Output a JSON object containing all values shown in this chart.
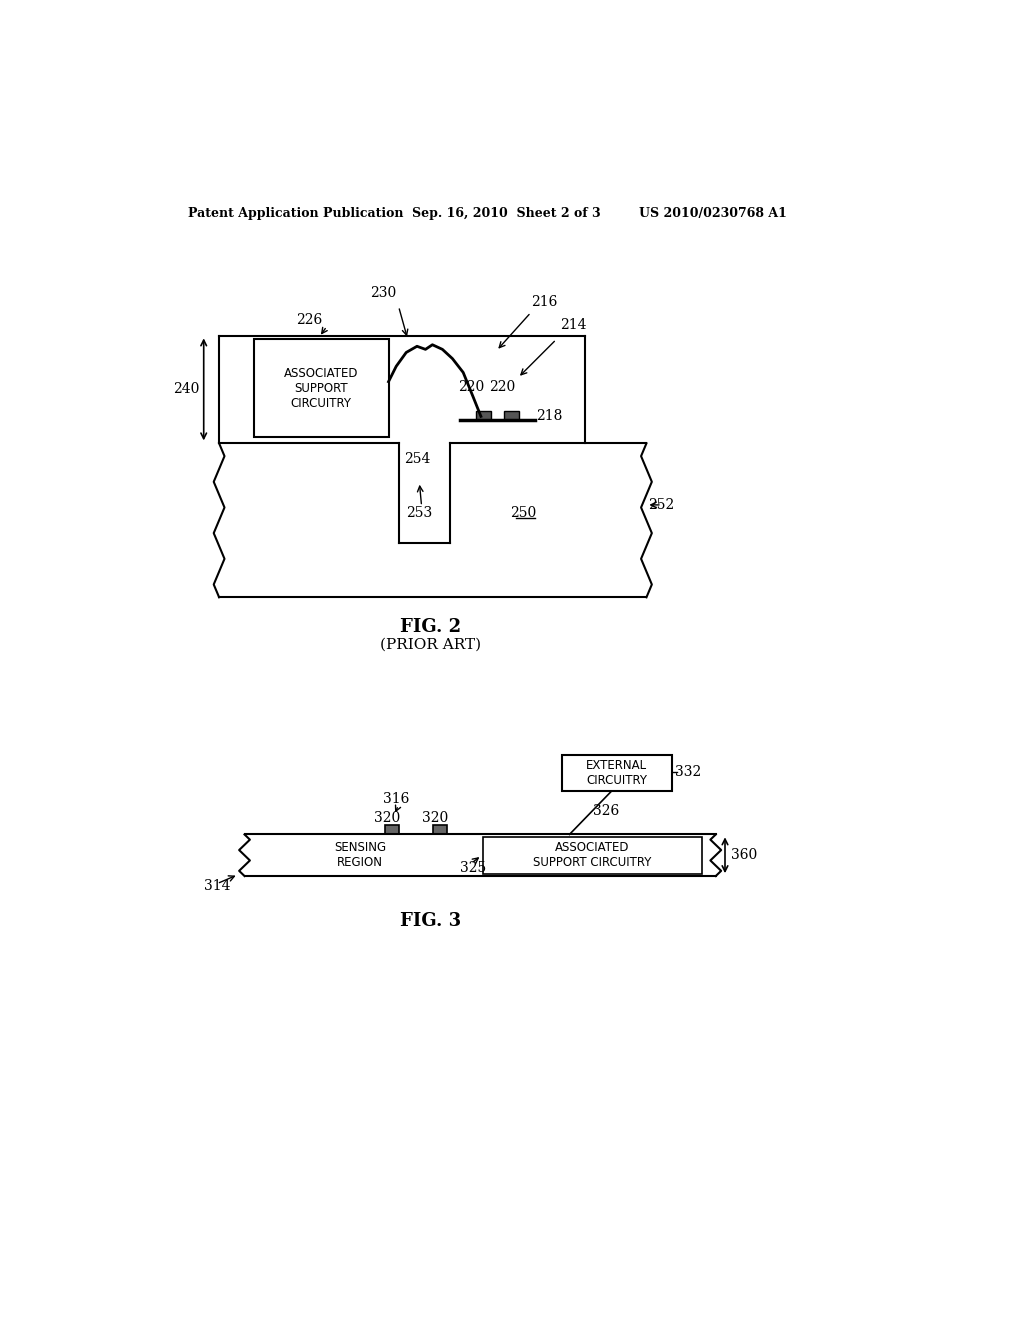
{
  "bg_color": "#ffffff",
  "header_left": "Patent Application Publication",
  "header_center": "Sep. 16, 2010  Sheet 2 of 3",
  "header_right": "US 2010/0230768 A1",
  "fig2_caption": "FIG. 2",
  "fig2_sub": "(PRIOR ART)",
  "fig3_caption": "FIG. 3",
  "line_color": "#000000",
  "text_color": "#000000"
}
